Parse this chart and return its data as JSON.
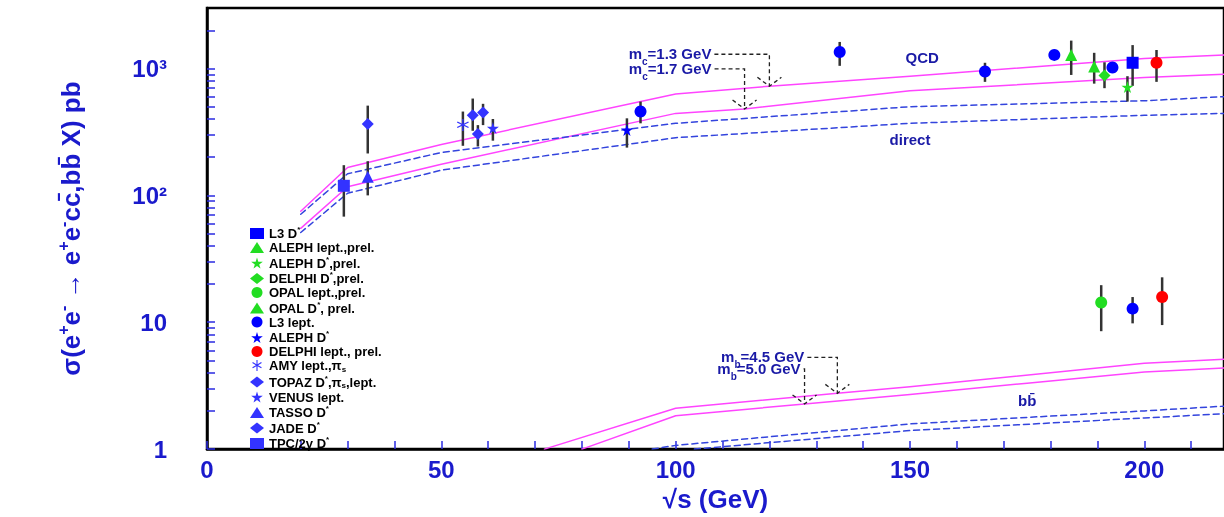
{
  "chart_data": {
    "type": "scatter",
    "xlabel": "√s (GeV)",
    "ylabel": "σ(e$^{+}$e$^{-}$ → e$^{+}$e$^{-}$cc̄,bb̄ X) pb",
    "log": "y",
    "legend": "bottom left",
    "xlim": [
      0,
      217
    ],
    "xticks": [
      0,
      {
        "value": 10,
        "label": null
      },
      {
        "value": 20,
        "label": null
      },
      {
        "value": 30,
        "label": null
      },
      {
        "value": 40,
        "label": null
      },
      50,
      {
        "value": 60,
        "label": null
      },
      {
        "value": 70,
        "label": null
      },
      {
        "value": 80,
        "label": null
      },
      {
        "value": 90,
        "label": null
      },
      100,
      {
        "value": 110,
        "label": null
      },
      {
        "value": 120,
        "label": null
      },
      {
        "value": 130,
        "label": null
      },
      {
        "value": 140,
        "label": null
      },
      150,
      {
        "value": 160,
        "label": null
      },
      {
        "value": 170,
        "label": null
      },
      {
        "value": 180,
        "label": null
      },
      {
        "value": 190,
        "label": null
      },
      200,
      {
        "value": 210,
        "label": null
      }
    ],
    "ylim": [
      1,
      3000
    ],
    "yticks": [
      1,
      {
        "value": 2,
        "label": null
      },
      {
        "value": 3,
        "label": null
      },
      {
        "value": 4,
        "label": null
      },
      {
        "value": 5,
        "label": null
      },
      {
        "value": 6,
        "label": null
      },
      {
        "value": 7,
        "label": null
      },
      {
        "value": 8,
        "label": null
      },
      {
        "value": 9,
        "label": null
      },
      10,
      {
        "value": 20,
        "label": null
      },
      {
        "value": 30,
        "label": null
      },
      {
        "value": 40,
        "label": null
      },
      {
        "value": 50,
        "label": null
      },
      {
        "value": 60,
        "label": null
      },
      {
        "value": 70,
        "label": null
      },
      {
        "value": 80,
        "label": null
      },
      {
        "value": 90,
        "label": null
      },
      {
        "value": 100,
        "label": "10²"
      },
      {
        "value": 200,
        "label": null
      },
      {
        "value": 300,
        "label": null
      },
      {
        "value": 400,
        "label": null
      },
      {
        "value": 500,
        "label": null
      },
      {
        "value": 600,
        "label": null
      },
      {
        "value": 700,
        "label": null
      },
      {
        "value": 800,
        "label": null
      },
      {
        "value": 900,
        "label": null
      },
      {
        "value": 1000,
        "label": "10³"
      },
      {
        "value": 2000,
        "label": null
      }
    ],
    "annotations": [
      {
        "text": "m$_{c}$=1.3 GeV",
        "x": 120,
        "y": 725
      },
      {
        "text": "m$_{c}$=1.7 GeV",
        "x": 114.7,
        "y": 480
      },
      {
        "text": "QCD",
        "x": 152.6,
        "y": 885
      },
      {
        "text": "direct",
        "x": 150,
        "y": 370
      },
      {
        "text": "m$_{b}$=4.5 GeV",
        "x": 134.5,
        "y": 2.75
      },
      {
        "text": "m$_{b}$=5.0 GeV",
        "x": 127.5,
        "y": 2.27
      },
      {
        "text": "bb̄",
        "x": 175,
        "y": 3.31
      }
    ],
    "series": [
      {
        "type": "line",
        "color": "#ff44ff",
        "marker": "none",
        "line_style": "solid",
        "x": [
          20,
          30,
          50,
          100,
          120,
          150,
          200,
          217
        ],
        "values": [
          75,
          166,
          252,
          630,
          725,
          870,
          1200,
          1280
        ]
      },
      {
        "type": "line",
        "color": "#ff44ff",
        "marker": "none",
        "line_style": "solid",
        "x": [
          20,
          30,
          50,
          100,
          114.7,
          150,
          200,
          217
        ],
        "values": [
          55,
          117,
          176,
          443,
          480,
          667,
          850,
          900
        ]
      },
      {
        "type": "line",
        "color": "#3344dd",
        "marker": "none",
        "line_style": "dashed",
        "x": [
          20,
          30,
          50,
          100,
          150,
          200,
          217
        ],
        "values": [
          71,
          148,
          218,
          370,
          500,
          557,
          600
        ]
      },
      {
        "type": "line",
        "color": "#3344dd",
        "marker": "none",
        "line_style": "dashed",
        "x": [
          20,
          30,
          50,
          100,
          150,
          200,
          217
        ],
        "values": [
          51,
          104,
          158,
          285,
          370,
          428,
          443
        ]
      },
      {
        "type": "line",
        "color": "#ff44ff",
        "marker": "none",
        "line_style": "solid",
        "x": [
          72,
          100,
          134.5,
          150,
          200,
          217
        ],
        "values": [
          1,
          2.1,
          2.75,
          3.1,
          4.75,
          5.1
        ]
      },
      {
        "type": "line",
        "color": "#ff44ff",
        "marker": "none",
        "line_style": "solid",
        "x": [
          80,
          100,
          127.5,
          150,
          175,
          200,
          217
        ],
        "values": [
          1,
          1.83,
          2.27,
          2.7,
          3.31,
          4.05,
          4.35
        ]
      },
      {
        "type": "line",
        "color": "#3344dd",
        "marker": "none",
        "line_style": "dashed",
        "x": [
          95,
          100,
          150,
          200,
          217
        ],
        "values": [
          1,
          1.07,
          1.58,
          2.0,
          2.18
        ]
      },
      {
        "type": "line",
        "color": "#3344dd",
        "marker": "none",
        "line_style": "dashed",
        "x": [
          104,
          150,
          200,
          217
        ],
        "values": [
          1,
          1.4,
          1.76,
          1.9
        ]
      },
      {
        "name": "L3 D$^{*}$",
        "color": "#0000ff",
        "marker": "square",
        "x": [
          197.5
        ],
        "values": [
          1110
        ],
        "errors": [
          [
            730,
            1530
          ]
        ]
      },
      {
        "name": "ALEPH lept.,prel.",
        "color": "#22dd22",
        "marker": "triangle",
        "x": [
          184.4
        ],
        "values": [
          1280
        ],
        "errors": [
          [
            890,
            1660
          ]
        ]
      },
      {
        "name": "ALEPH D$^{*}$,prel.",
        "color": "#22dd22",
        "marker": "star",
        "x": [
          196.4
        ],
        "values": [
          714
        ],
        "errors": [
          [
            549,
            870
          ]
        ]
      },
      {
        "name": "DELPHI D$^{*}$,prel.",
        "color": "#22dd22",
        "marker": "diamond",
        "x": [
          191.5
        ],
        "values": [
          883
        ],
        "errors": [
          [
            700,
            1120
          ]
        ]
      },
      {
        "name": "OPAL lept.,prel.",
        "color": "#22dd22",
        "marker": "circle",
        "x": [
          190.8
        ],
        "values": [
          14.3
        ],
        "errors": [
          [
            8.5,
            19.6
          ]
        ]
      },
      {
        "name": "OPAL D$^{*}$, prel.",
        "color": "#22dd22",
        "marker": "triangle",
        "x": [
          189.3
        ],
        "values": [
          1036
        ],
        "errors": [
          [
            760,
            1330
          ]
        ]
      },
      {
        "name": "L3 lept.",
        "color": "#0000ff",
        "marker": "circle",
        "x": [
          92.5,
          135,
          166,
          180.8,
          193.2,
          197.5
        ],
        "values": [
          458,
          1350,
          948,
          1280,
          1018,
          12.8
        ],
        "errors": [
          [
            370,
            549
          ],
          [
            1050,
            1620
          ],
          [
            785,
            1110
          ],
          null,
          null,
          [
            9.8,
            15.8
          ]
        ]
      },
      {
        "name": "ALEPH D$^{*}$",
        "color": "#0000ff",
        "marker": "star",
        "x": [
          89.6
        ],
        "values": [
          328
        ],
        "errors": [
          [
            238,
            405
          ]
        ]
      },
      {
        "name": "DELPHI lept., prel.",
        "color": "#ff0000",
        "marker": "circle",
        "x": [
          202.6,
          203.8
        ],
        "values": [
          1110,
          15.8
        ],
        "errors": [
          [
            785,
            1400
          ],
          [
            9.5,
            22.6
          ]
        ]
      },
      {
        "name": "AMY lept.,π$_{s}$",
        "color": "#3333ff",
        "marker": "cross",
        "x": [
          54.6
        ],
        "values": [
          358
        ],
        "errors": [
          [
            246,
            458
          ]
        ]
      },
      {
        "name": "TOPAZ D$^{*}$,π$_{s}$,lept.",
        "color": "#3333ff",
        "marker": "diamond",
        "x": [
          56.7,
          57.8,
          58.9
        ],
        "values": [
          428,
          305,
          451
        ],
        "errors": [
          [
            323,
            580
          ],
          [
            243,
            358
          ],
          [
            358,
            527
          ]
        ]
      },
      {
        "name": "VENUS lept.",
        "color": "#3333ff",
        "marker": "star",
        "x": [
          61
        ],
        "values": [
          339
        ],
        "errors": [
          [
            270,
            400
          ]
        ]
      },
      {
        "name": "TASSO D$^{*}$",
        "color": "#3333ff",
        "marker": "triangle",
        "x": [
          34.3
        ],
        "values": [
          140
        ],
        "errors": [
          [
            100,
            186
          ]
        ]
      },
      {
        "name": "JADE D$^{*}$",
        "color": "#3333ff",
        "marker": "diamond",
        "x": [
          34.3
        ],
        "values": [
          365
        ],
        "errors": [
          [
            214,
            510
          ]
        ]
      },
      {
        "name": "TPC/2γ D$^{*}$",
        "color": "#3333ff",
        "marker": "square",
        "x": [
          29.2
        ],
        "values": [
          119
        ],
        "errors": [
          [
            68,
            173
          ]
        ]
      }
    ]
  }
}
